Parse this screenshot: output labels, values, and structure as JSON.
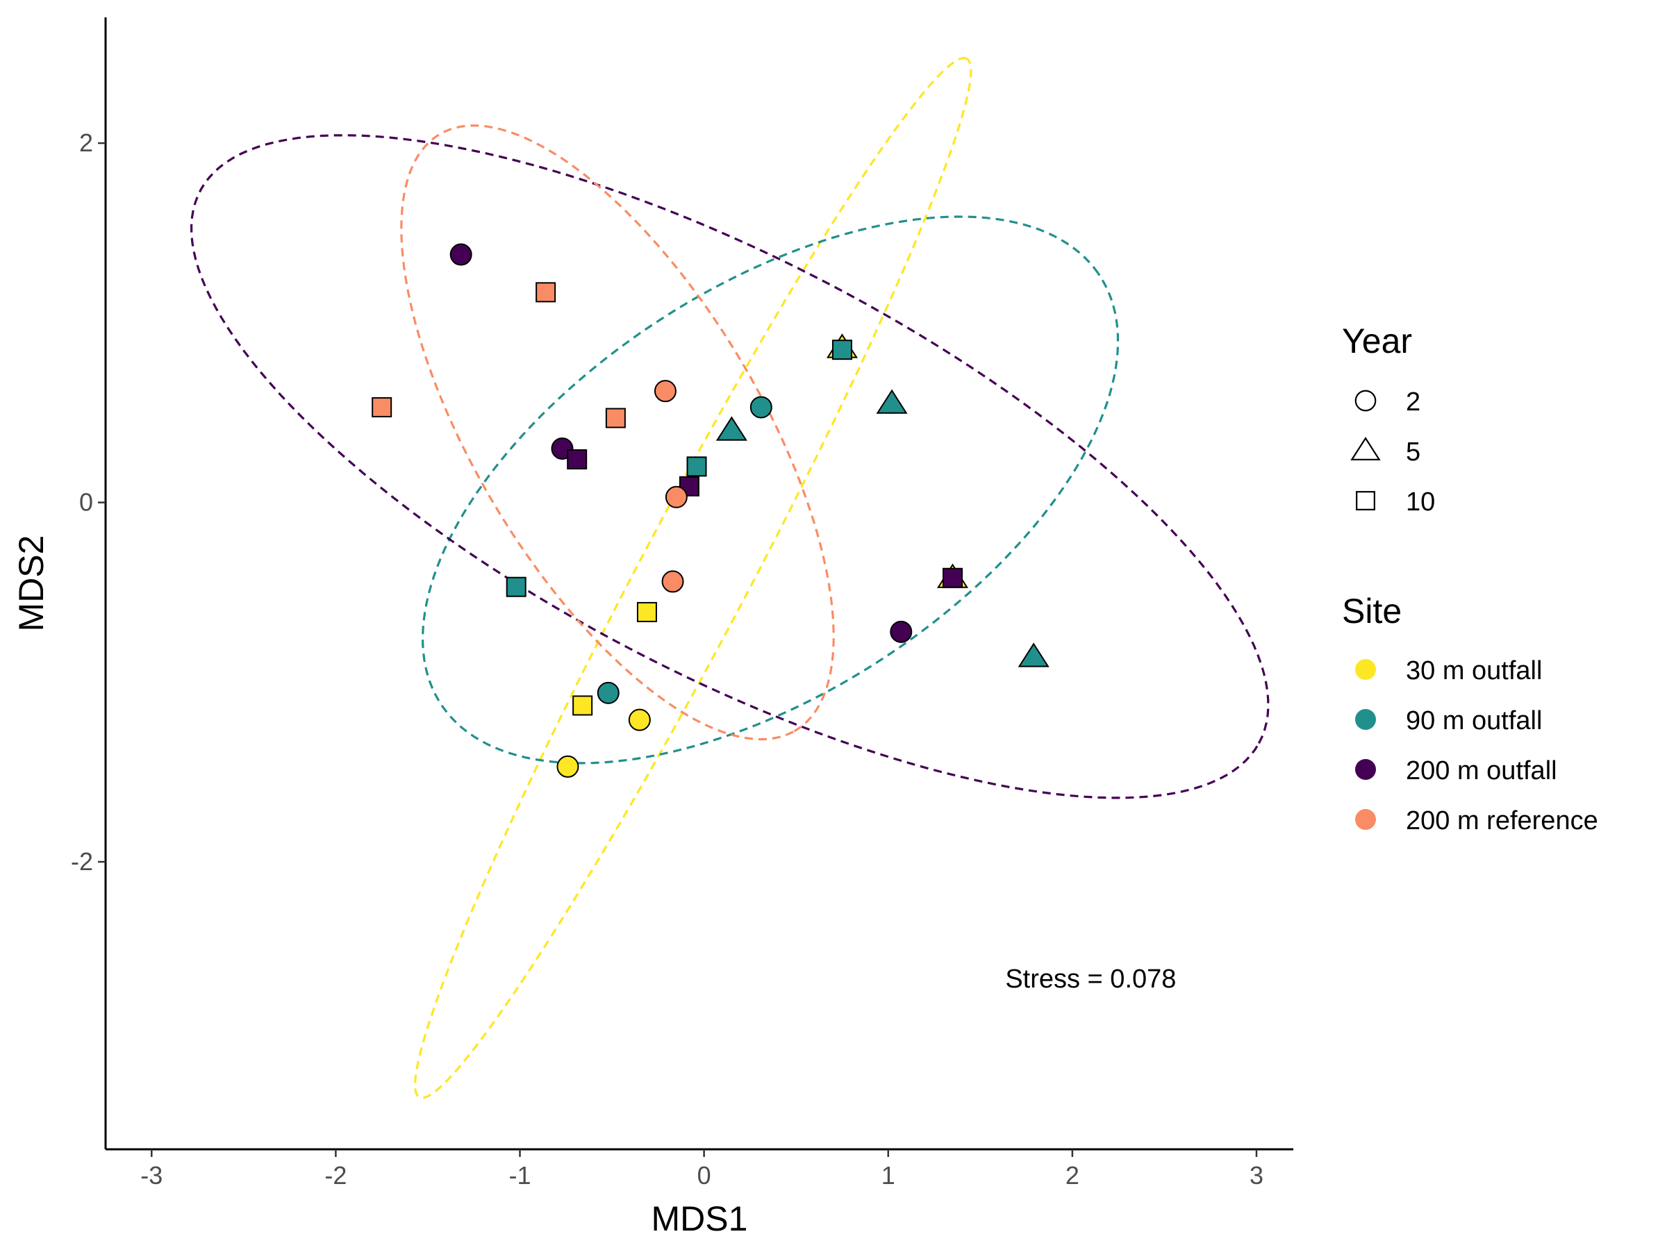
{
  "chart_data": {
    "type": "scatter",
    "xlabel": "MDS1",
    "ylabel": "MDS2",
    "xlim": [
      -3.25,
      3.2
    ],
    "ylim": [
      -3.6,
      2.7
    ],
    "x_ticks": [
      -3,
      -2,
      -1,
      0,
      1,
      2,
      3
    ],
    "y_ticks": [
      -2,
      0,
      2
    ],
    "grid": false,
    "annotation": {
      "text": "Stress =  0.078",
      "x": 2.1,
      "y": -2.7
    },
    "legend": {
      "placement": "right",
      "shape_title": "Year",
      "shape_entries": [
        {
          "label": "2",
          "shape": "circle"
        },
        {
          "label": "5",
          "shape": "triangle"
        },
        {
          "label": "10",
          "shape": "square"
        }
      ],
      "color_title": "Site",
      "color_entries": [
        {
          "label": "30 m outfall",
          "color": "#FDE725"
        },
        {
          "label": "90 m outfall",
          "color": "#21908C"
        },
        {
          "label": "200 m outfall",
          "color": "#440154"
        },
        {
          "label": "200 m reference",
          "color": "#F98C64"
        }
      ]
    },
    "ellipses": [
      {
        "site": "30 m outfall",
        "color": "#FDE725",
        "cx": -0.06,
        "cy": -0.42,
        "a": 3.25,
        "b": 0.3,
        "angle_deg": 62.8
      },
      {
        "site": "90 m outfall",
        "color": "#21908C",
        "cx": 0.36,
        "cy": 0.07,
        "a": 2.15,
        "b": 1.12,
        "angle_deg": 34.1
      },
      {
        "site": "200 m outfall",
        "color": "#440154",
        "cx": 0.14,
        "cy": 0.2,
        "a": 3.26,
        "b": 1.15,
        "angle_deg": -28.2
      },
      {
        "site": "200 m reference",
        "color": "#F98C64",
        "cx": -0.47,
        "cy": 0.39,
        "a": 1.92,
        "b": 0.78,
        "angle_deg": -60
      }
    ],
    "series": [
      {
        "name": "30 m outfall",
        "color": "#FDE725",
        "points": [
          {
            "x": -0.74,
            "y": -1.47,
            "year": "2"
          },
          {
            "x": -0.35,
            "y": -1.21,
            "year": "2"
          },
          {
            "x": -0.66,
            "y": -1.13,
            "year": "10"
          },
          {
            "x": -0.31,
            "y": -0.61,
            "year": "10"
          },
          {
            "x": 1.35,
            "y": -0.42,
            "year": "5"
          },
          {
            "x": 0.75,
            "y": 0.86,
            "year": "5"
          }
        ]
      },
      {
        "name": "90 m outfall",
        "color": "#21908C",
        "points": [
          {
            "x": -0.52,
            "y": -1.06,
            "year": "2"
          },
          {
            "x": 0.31,
            "y": 0.53,
            "year": "2"
          },
          {
            "x": -1.02,
            "y": -0.47,
            "year": "10"
          },
          {
            "x": -0.04,
            "y": 0.2,
            "year": "10"
          },
          {
            "x": 0.75,
            "y": 0.85,
            "year": "10"
          },
          {
            "x": 0.15,
            "y": 0.4,
            "year": "5"
          },
          {
            "x": 1.02,
            "y": 0.55,
            "year": "5"
          },
          {
            "x": 1.79,
            "y": -0.86,
            "year": "5"
          }
        ]
      },
      {
        "name": "200 m outfall",
        "color": "#440154",
        "points": [
          {
            "x": -1.32,
            "y": 1.38,
            "year": "2"
          },
          {
            "x": -0.77,
            "y": 0.3,
            "year": "2"
          },
          {
            "x": 1.07,
            "y": -0.72,
            "year": "2"
          },
          {
            "x": -0.69,
            "y": 0.24,
            "year": "10"
          },
          {
            "x": -0.08,
            "y": 0.09,
            "year": "10"
          },
          {
            "x": 1.35,
            "y": -0.42,
            "year": "10"
          }
        ]
      },
      {
        "name": "200 m reference",
        "color": "#F98C64",
        "points": [
          {
            "x": -0.21,
            "y": 0.62,
            "year": "2"
          },
          {
            "x": -0.15,
            "y": 0.03,
            "year": "2"
          },
          {
            "x": -0.17,
            "y": -0.44,
            "year": "2"
          },
          {
            "x": -0.86,
            "y": 1.17,
            "year": "10"
          },
          {
            "x": -1.75,
            "y": 0.53,
            "year": "10"
          },
          {
            "x": -0.48,
            "y": 0.47,
            "year": "10"
          }
        ]
      }
    ]
  }
}
